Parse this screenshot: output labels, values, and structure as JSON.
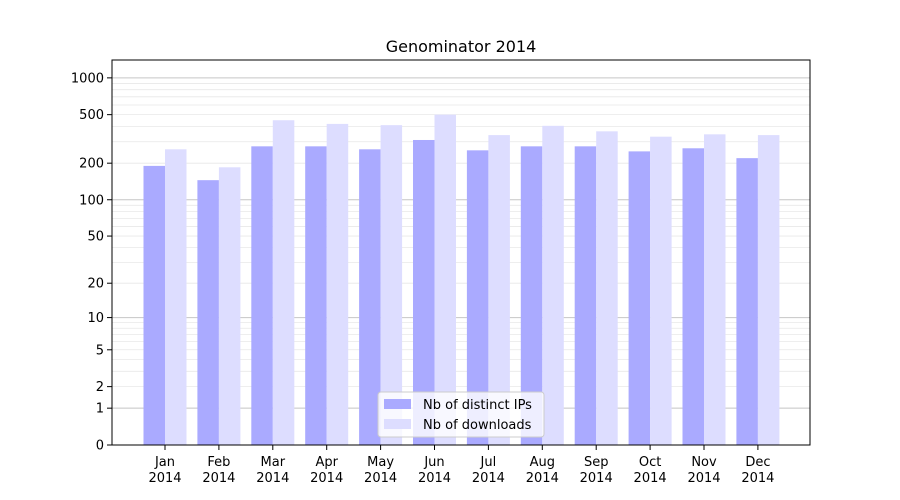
{
  "chart_data": {
    "type": "bar",
    "title": "Genominator 2014",
    "xlabel": "",
    "ylabel": "",
    "yscale": "log(1+y)",
    "ylim": [
      0,
      1400
    ],
    "y_ticks": [
      "0",
      "1",
      "2",
      "5",
      "10",
      "20",
      "50",
      "100",
      "200",
      "500",
      "1000"
    ],
    "y_tick_values": [
      0,
      1,
      2,
      5,
      10,
      20,
      50,
      100,
      200,
      500,
      1000
    ],
    "categories": [
      {
        "month": "Jan",
        "year": "2014"
      },
      {
        "month": "Feb",
        "year": "2014"
      },
      {
        "month": "Mar",
        "year": "2014"
      },
      {
        "month": "Apr",
        "year": "2014"
      },
      {
        "month": "May",
        "year": "2014"
      },
      {
        "month": "Jun",
        "year": "2014"
      },
      {
        "month": "Jul",
        "year": "2014"
      },
      {
        "month": "Aug",
        "year": "2014"
      },
      {
        "month": "Sep",
        "year": "2014"
      },
      {
        "month": "Oct",
        "year": "2014"
      },
      {
        "month": "Nov",
        "year": "2014"
      },
      {
        "month": "Dec",
        "year": "2014"
      }
    ],
    "series": [
      {
        "name": "Nb of distinct IPs",
        "color": "#aaaaff",
        "values": [
          190,
          145,
          275,
          275,
          260,
          310,
          255,
          275,
          275,
          250,
          265,
          220
        ]
      },
      {
        "name": "Nb of downloads",
        "color": "#ddddff",
        "values": [
          260,
          185,
          450,
          420,
          410,
          500,
          340,
          405,
          365,
          330,
          345,
          340
        ]
      }
    ],
    "grid": true,
    "legend_position": "lower-center"
  }
}
